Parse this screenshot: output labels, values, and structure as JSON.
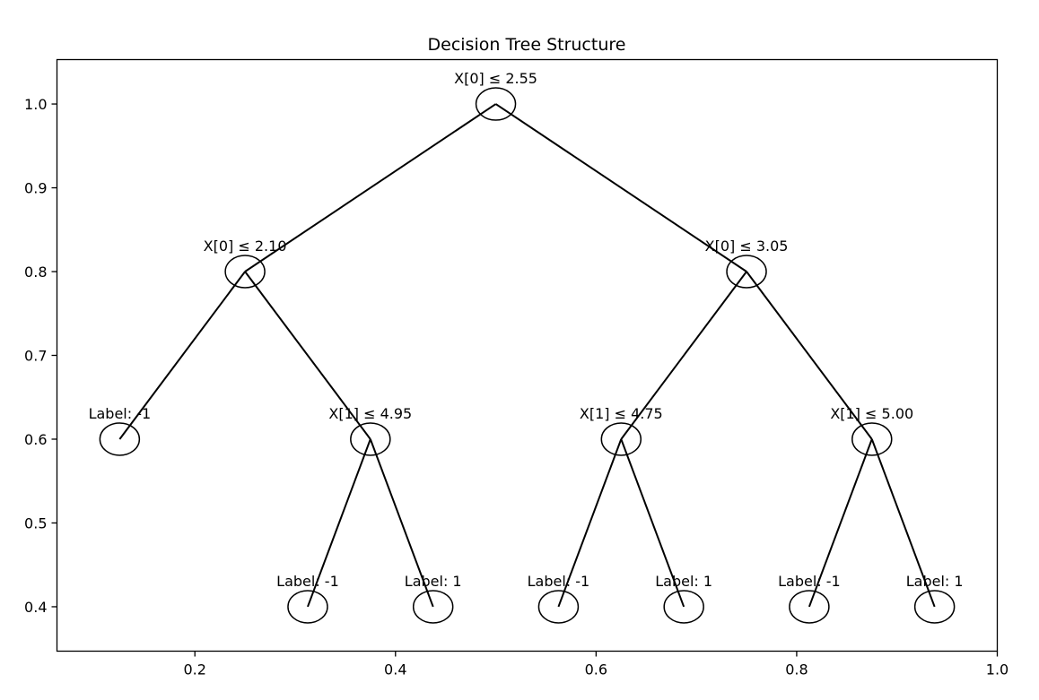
{
  "chart_data": {
    "type": "tree",
    "title": "Decision Tree Structure",
    "xlabel": "",
    "ylabel": "",
    "xlim": [
      0.0625,
      1.0
    ],
    "ylim": [
      0.347,
      1.053
    ],
    "xticks": [
      {
        "value": 0.2,
        "label": "0.2"
      },
      {
        "value": 0.4,
        "label": "0.4"
      },
      {
        "value": 0.6,
        "label": "0.6"
      },
      {
        "value": 0.8,
        "label": "0.8"
      },
      {
        "value": 1.0,
        "label": "1.0"
      }
    ],
    "yticks": [
      {
        "value": 0.4,
        "label": "0.4"
      },
      {
        "value": 0.5,
        "label": "0.5"
      },
      {
        "value": 0.6,
        "label": "0.6"
      },
      {
        "value": 0.7,
        "label": "0.7"
      },
      {
        "value": 0.8,
        "label": "0.8"
      },
      {
        "value": 0.9,
        "label": "0.9"
      },
      {
        "value": 1.0,
        "label": "1.0"
      }
    ],
    "grid": false,
    "nodes": [
      {
        "id": "n0",
        "x": 0.5,
        "y": 1.0,
        "label": "X[0] ≤ 2.55"
      },
      {
        "id": "n1",
        "x": 0.25,
        "y": 0.8,
        "label": "X[0] ≤ 2.10"
      },
      {
        "id": "n2",
        "x": 0.75,
        "y": 0.8,
        "label": "X[0] ≤ 3.05"
      },
      {
        "id": "n3",
        "x": 0.125,
        "y": 0.6,
        "label": "Label: -1"
      },
      {
        "id": "n4",
        "x": 0.375,
        "y": 0.6,
        "label": "X[1] ≤ 4.95"
      },
      {
        "id": "n5",
        "x": 0.625,
        "y": 0.6,
        "label": "X[1] ≤ 4.75"
      },
      {
        "id": "n6",
        "x": 0.875,
        "y": 0.6,
        "label": "X[1] ≤ 5.00"
      },
      {
        "id": "n7",
        "x": 0.3125,
        "y": 0.4,
        "label": "Label: -1"
      },
      {
        "id": "n8",
        "x": 0.4375,
        "y": 0.4,
        "label": "Label: 1"
      },
      {
        "id": "n9",
        "x": 0.5625,
        "y": 0.4,
        "label": "Label: -1"
      },
      {
        "id": "n10",
        "x": 0.6875,
        "y": 0.4,
        "label": "Label: 1"
      },
      {
        "id": "n11",
        "x": 0.8125,
        "y": 0.4,
        "label": "Label: -1"
      },
      {
        "id": "n12",
        "x": 0.9375,
        "y": 0.4,
        "label": "Label: 1"
      }
    ],
    "edges": [
      [
        "n0",
        "n1"
      ],
      [
        "n0",
        "n2"
      ],
      [
        "n1",
        "n3"
      ],
      [
        "n1",
        "n4"
      ],
      [
        "n2",
        "n5"
      ],
      [
        "n2",
        "n6"
      ],
      [
        "n4",
        "n7"
      ],
      [
        "n4",
        "n8"
      ],
      [
        "n5",
        "n9"
      ],
      [
        "n5",
        "n10"
      ],
      [
        "n6",
        "n11"
      ],
      [
        "n6",
        "n12"
      ]
    ]
  }
}
